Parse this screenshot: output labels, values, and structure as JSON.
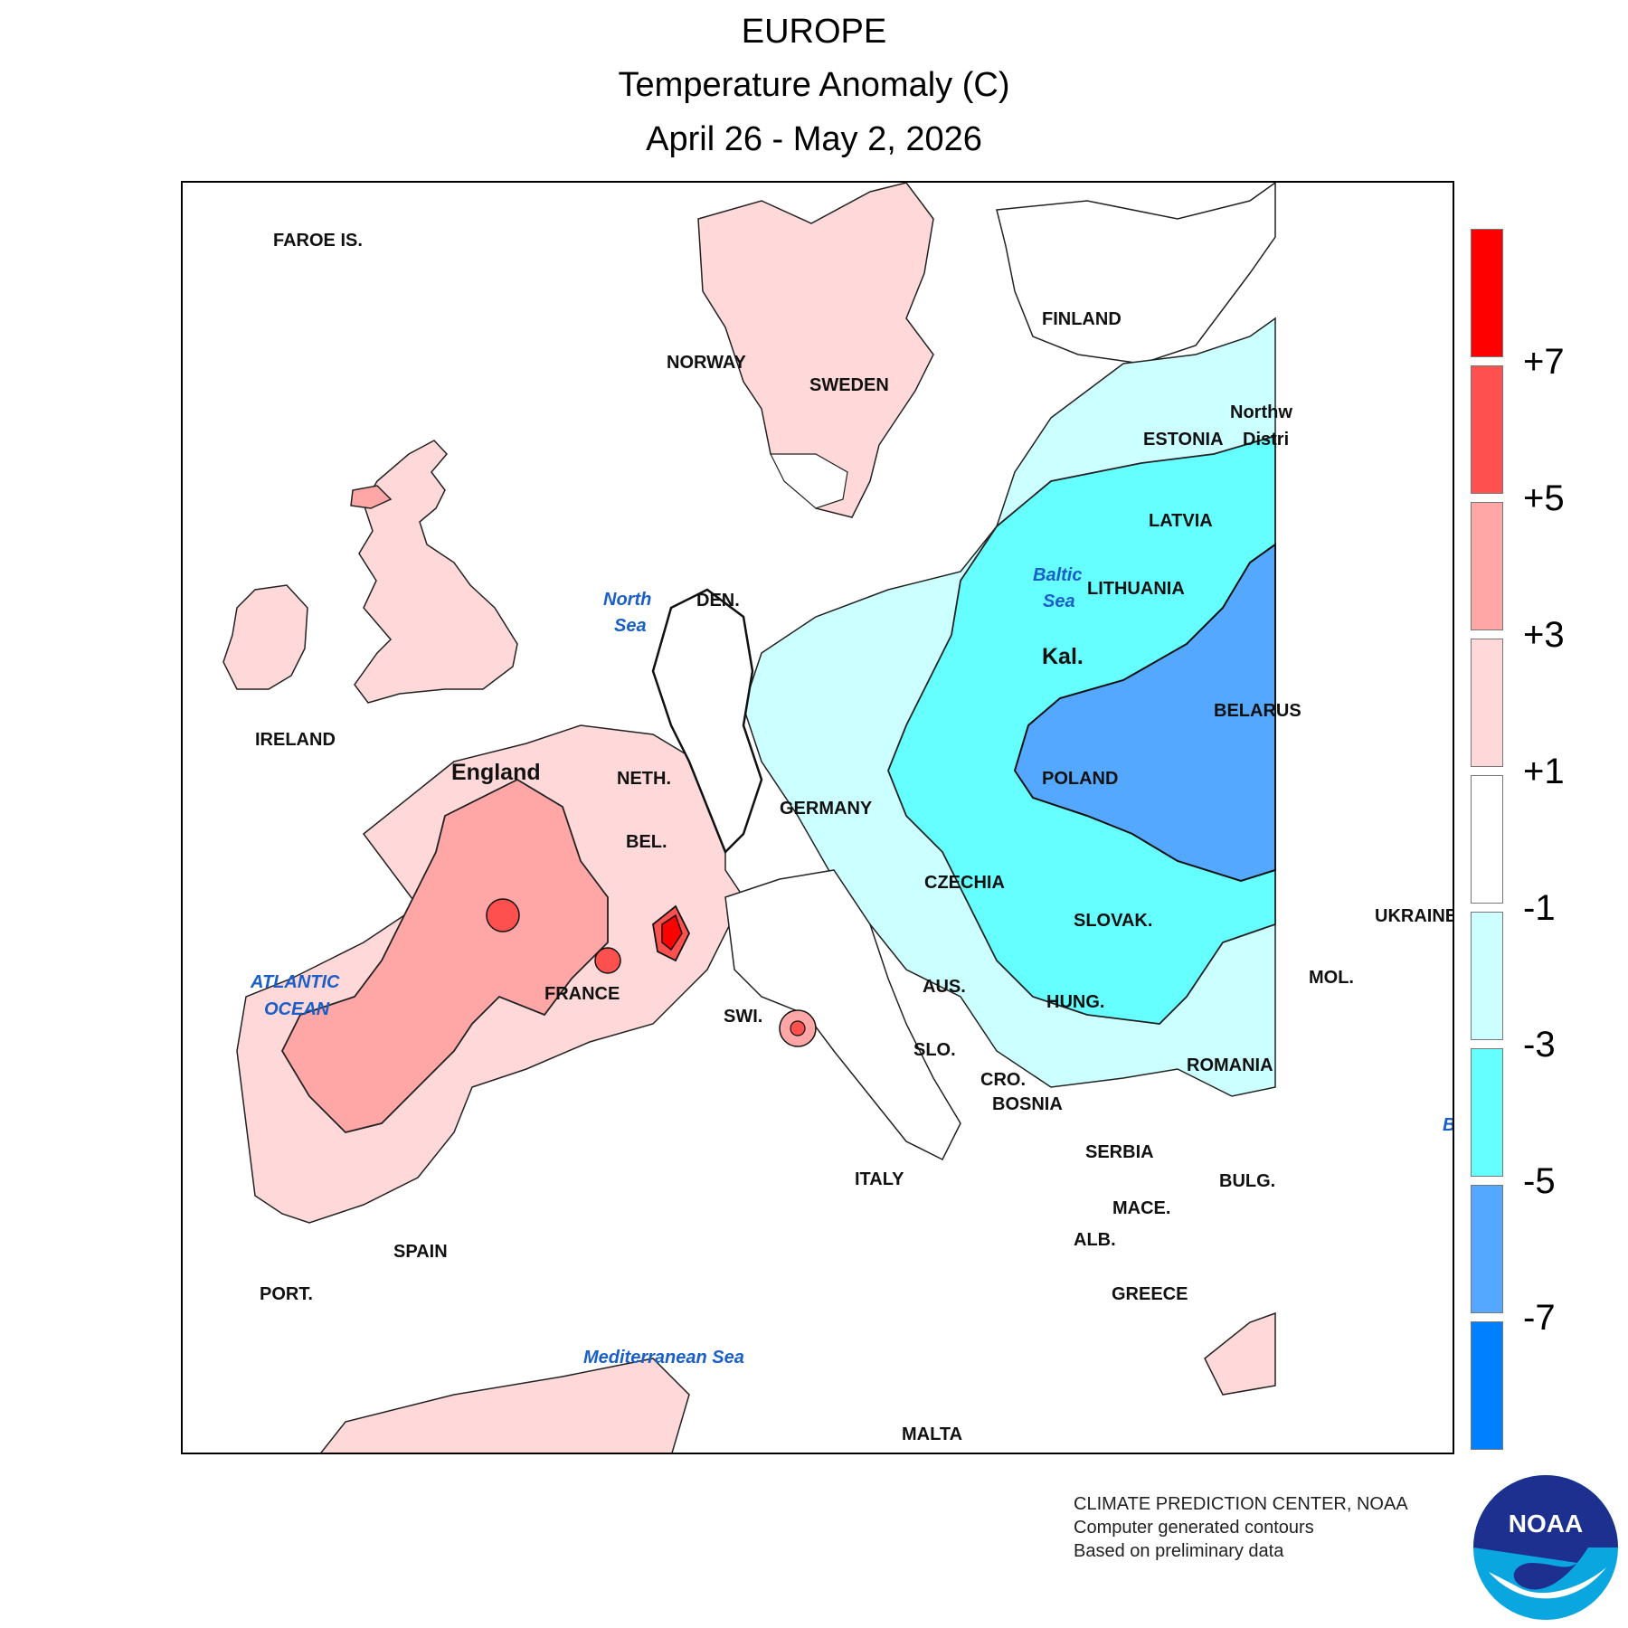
{
  "header": {
    "region": "EUROPE",
    "variable": "Temperature Anomaly (C)",
    "period": "April 26 - May 2, 2026"
  },
  "map": {
    "country_labels": {
      "faroe": "FAROE IS.",
      "norway": "NORWAY",
      "sweden": "SWEDEN",
      "finland": "FINLAND",
      "estonia": "ESTONIA",
      "latvia": "LATVIA",
      "lithuania": "LITHUANIA",
      "kaliningrad": "Kal.",
      "belarus": "BELARUS",
      "northwest_district": "Northw",
      "northwest_district_2": "Distri",
      "ireland": "IRELAND",
      "england": "England",
      "denmark": "DEN.",
      "netherlands": "NETH.",
      "belgium": "BEL.",
      "germany": "GERMANY",
      "poland": "POLAND",
      "czechia": "CZECHIA",
      "slovakia": "SLOVAK.",
      "ukraine": "UKRAINE",
      "france": "FRANCE",
      "switzerland": "SWI.",
      "austria": "AUS.",
      "hungary": "HUNG.",
      "moldova": "MOL.",
      "romania": "ROMANIA",
      "slovenia": "SLO.",
      "croatia": "CRO.",
      "bosnia": "BOSNIA",
      "serbia": "SERBIA",
      "bulgaria": "BULG.",
      "macedonia": "MACE.",
      "albania": "ALB.",
      "greece": "GREECE",
      "italy": "ITALY",
      "spain": "SPAIN",
      "portugal": "PORT.",
      "malta": "MALTA",
      "black_sea_fragment": "B"
    },
    "sea_labels": {
      "north_sea_1": "North",
      "north_sea_2": "Sea",
      "baltic_1": "Baltic",
      "baltic_2": "Sea",
      "atlantic_1": "ATLANTIC",
      "atlantic_2": "OCEAN",
      "mediterranean": "Mediterranean Sea"
    }
  },
  "legend": {
    "units": "C",
    "bins": [
      {
        "range": "> +7",
        "color": "#ff0000"
      },
      {
        "range": "+5 to +7",
        "color": "#ff5050"
      },
      {
        "range": "+3 to +5",
        "color": "#ffa6a6"
      },
      {
        "range": "+1 to +3",
        "color": "#ffd9d9"
      },
      {
        "range": "-1 to +1",
        "color": "#ffffff"
      },
      {
        "range": "-3 to -1",
        "color": "#ccffff"
      },
      {
        "range": "-5 to -3",
        "color": "#66ffff"
      },
      {
        "range": "-7 to -5",
        "color": "#55a8ff"
      },
      {
        "range": "< -7",
        "color": "#0080ff"
      }
    ],
    "tick_labels": [
      "+7",
      "+5",
      "+3",
      "+1",
      "-1",
      "-3",
      "-5",
      "-7"
    ]
  },
  "credits": {
    "line1": "CLIMATE PREDICTION CENTER, NOAA",
    "line2": "Computer generated contours",
    "line3": "Based on preliminary data"
  },
  "logo": {
    "text": "NOAA",
    "icon": "noaa-logo",
    "colors": {
      "dark_blue": "#1d2f8f",
      "light_blue": "#0aa6e0"
    }
  }
}
